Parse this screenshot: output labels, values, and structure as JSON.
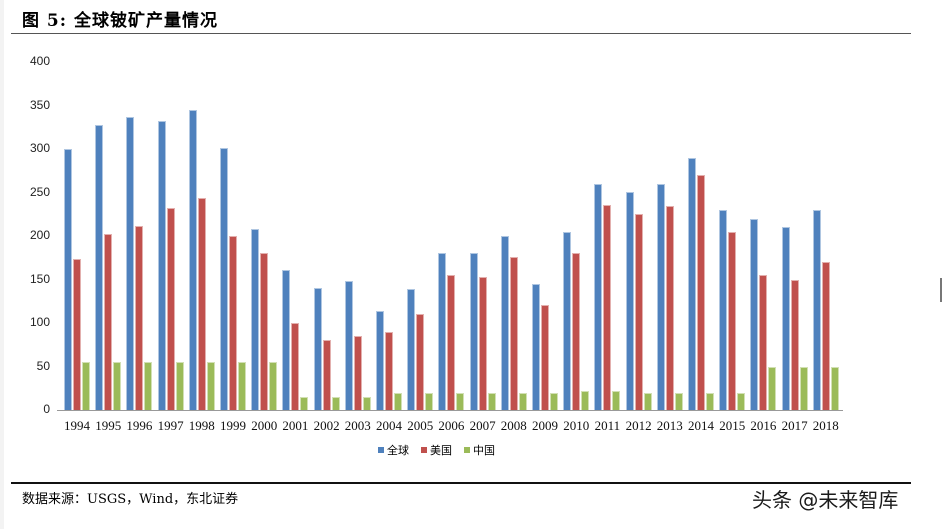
{
  "figure": {
    "title": "图 5:  全球铍矿产量情况",
    "source": "数据来源：USGS，Wind，东北证券",
    "watermark": "头条 @未来智库"
  },
  "colors": {
    "global": "#4F81BD",
    "usa": "#C0504D",
    "china": "#9BBB59"
  },
  "chart_data": {
    "type": "bar",
    "title": "全球铍矿产量情况",
    "xlabel": "",
    "ylabel": "",
    "ylim": [
      0,
      400
    ],
    "yticks": [
      0,
      50,
      100,
      150,
      200,
      250,
      300,
      350,
      400
    ],
    "grid": false,
    "legend_position": "bottom",
    "categories": [
      "1994",
      "1995",
      "1996",
      "1997",
      "1998",
      "1999",
      "2000",
      "2001",
      "2002",
      "2003",
      "2004",
      "2005",
      "2006",
      "2007",
      "2008",
      "2009",
      "2010",
      "2011",
      "2012",
      "2013",
      "2014",
      "2015",
      "2016",
      "2017",
      "2018"
    ],
    "series": [
      {
        "name": "全球",
        "color": "#4F81BD",
        "values": [
          300,
          328,
          337,
          332,
          345,
          301,
          208,
          161,
          140,
          148,
          114,
          139,
          180,
          180,
          200,
          145,
          205,
          260,
          251,
          260,
          290,
          230,
          220,
          210,
          230
        ]
      },
      {
        "name": "美国",
        "color": "#C0504D",
        "values": [
          173,
          202,
          211,
          232,
          244,
          200,
          180,
          100,
          80,
          85,
          90,
          110,
          155,
          153,
          176,
          121,
          180,
          236,
          225,
          235,
          270,
          205,
          155,
          150,
          170
        ]
      },
      {
        "name": "中国",
        "color": "#9BBB59",
        "values": [
          55,
          55,
          55,
          55,
          55,
          55,
          55,
          15,
          15,
          15,
          20,
          20,
          20,
          20,
          20,
          20,
          22,
          22,
          20,
          20,
          20,
          20,
          50,
          50,
          50
        ]
      }
    ]
  }
}
